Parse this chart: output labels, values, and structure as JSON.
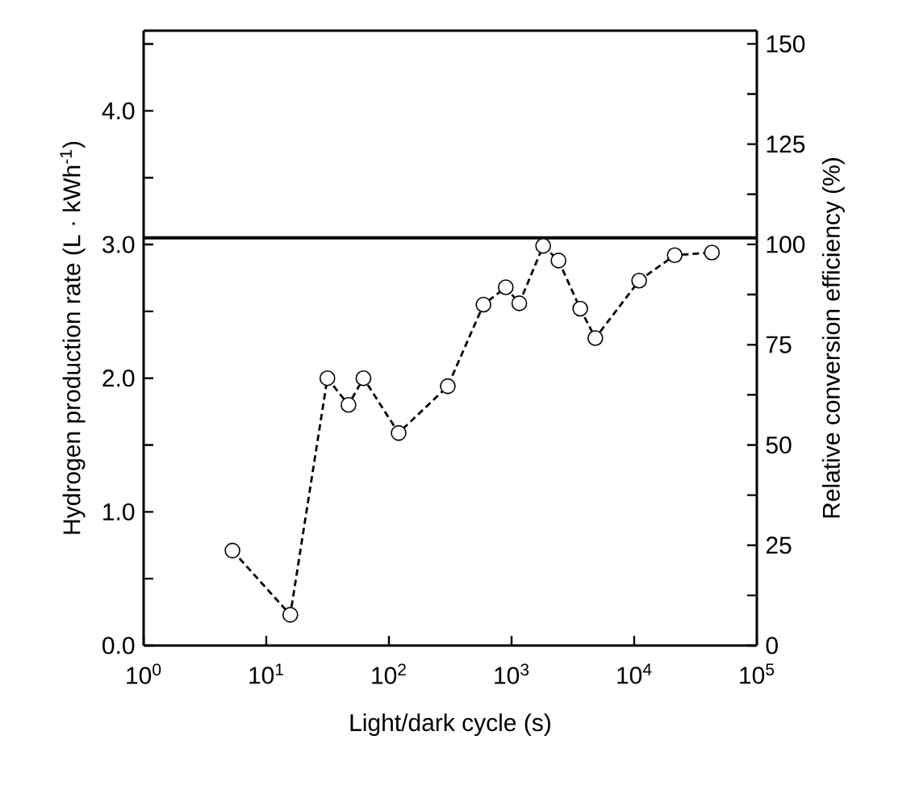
{
  "chart_data": {
    "type": "line",
    "xlabel": "Light/dark cycle (s)",
    "ylabel": "Hydrogen production rate (L · kWh$^{-1}$)",
    "y2label": "Relative conversion efficiency (%)",
    "log": "x",
    "xlim": [
      1,
      100000
    ],
    "ylim": [
      0,
      4.6
    ],
    "y2lim": [
      0,
      153.3
    ],
    "xticks": [
      {
        "value": 1,
        "label": "10$^{0}$"
      },
      {
        "value": 10,
        "label": "10$^{1}$"
      },
      {
        "value": 100,
        "label": "10$^{2}$"
      },
      {
        "value": 1000,
        "label": "10$^{3}$"
      },
      {
        "value": 10000,
        "label": "10$^{4}$"
      },
      {
        "value": 100000,
        "label": "10$^{5}$"
      }
    ],
    "yticks": [
      {
        "value": 0,
        "label": "0.0"
      },
      {
        "value": 0.5,
        "label": null
      },
      {
        "value": 1,
        "label": "1.0"
      },
      {
        "value": 1.5,
        "label": null
      },
      {
        "value": 2,
        "label": "2.0"
      },
      {
        "value": 2.5,
        "label": null
      },
      {
        "value": 3,
        "label": "3.0"
      },
      {
        "value": 3.5,
        "label": null
      },
      {
        "value": 4,
        "label": "4.0"
      },
      {
        "value": 4.5,
        "label": null
      }
    ],
    "y2ticks": [
      0,
      {
        "value": 12.5,
        "label": null
      },
      25,
      {
        "value": 37.5,
        "label": null
      },
      50,
      {
        "value": 62.5,
        "label": null
      },
      75,
      {
        "value": 87.5,
        "label": null
      },
      100,
      {
        "value": 112.5,
        "label": null
      },
      125,
      {
        "value": 137.5,
        "label": null
      },
      150
    ],
    "x": [
      5.3,
      15.7,
      31.5,
      46.8,
      62,
      120,
      302,
      590,
      897,
      1156,
      1810,
      2415,
      3630,
      4820,
      10970,
      21400,
      43000
    ],
    "values": [
      0.71,
      0.23,
      2.0,
      1.8,
      2.0,
      1.59,
      1.94,
      2.55,
      2.68,
      2.56,
      2.99,
      2.88,
      2.52,
      2.3,
      2.73,
      2.92,
      2.94
    ],
    "color": "#000000",
    "marker": "circle",
    "line_style": "dashed",
    "ref_lines": [
      {
        "axis": "y",
        "value": 3.05,
        "color": "#000000"
      }
    ]
  }
}
